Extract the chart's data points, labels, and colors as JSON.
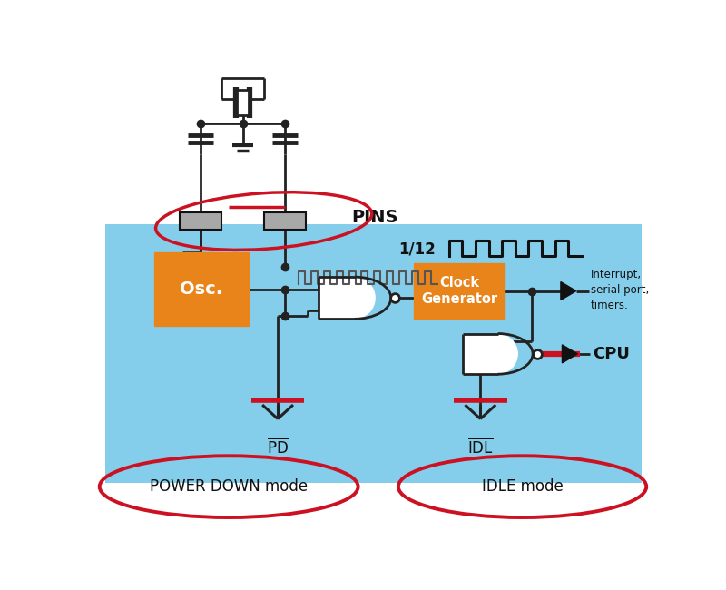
{
  "bg_color": "#ffffff",
  "blue_bg_color": "#85CEEB",
  "orange_color": "#E8841A",
  "gray_pin_color": "#A8A8A8",
  "red_color": "#CC1122",
  "dark_color": "#111111",
  "wire_color": "#222222",
  "osc_label": "Osc.",
  "clock_gen_label": "Clock\nGenerator",
  "pins_label": "PINS",
  "freq_div_label": "1/12",
  "interrupt_label": "Interrupt,\nserial port,\ntimers.",
  "power_down_label": "POWER DOWN mode",
  "idle_label": "IDLE mode",
  "cpu_label": "CPU"
}
